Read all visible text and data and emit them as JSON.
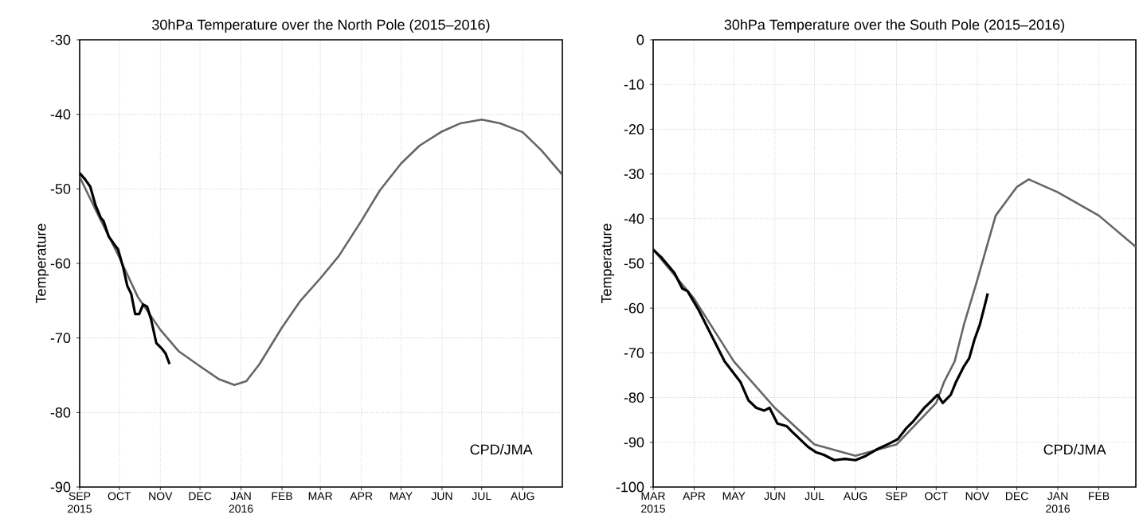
{
  "chart_data": [
    {
      "type": "line",
      "title": "30hPa Temperature over the North Pole (2015–2016)",
      "ylabel": "Temperature",
      "annotations": [
        "CPD/JMA"
      ],
      "grid": true,
      "marker": "none",
      "line_style": "solid",
      "xlim": [
        "2015-09-01",
        "2016-08-31"
      ],
      "ylim": [
        -90,
        -30
      ],
      "yticks": [
        -90,
        -80,
        -70,
        -60,
        -50,
        -40,
        -30
      ],
      "xticks": [
        {
          "value": "2015-09-01",
          "label": "SEP 2015"
        },
        {
          "value": "2015-10-01",
          "label": "OCT"
        },
        {
          "value": "2015-11-01",
          "label": "NOV"
        },
        {
          "value": "2015-12-01",
          "label": "DEC"
        },
        {
          "value": "2016-01-01",
          "label": "JAN 2016"
        },
        {
          "value": "2016-02-01",
          "label": "FEB"
        },
        {
          "value": "2016-03-01",
          "label": "MAR"
        },
        {
          "value": "2016-04-01",
          "label": "APR"
        },
        {
          "value": "2016-05-01",
          "label": "MAY"
        },
        {
          "value": "2016-06-01",
          "label": "JUN"
        },
        {
          "value": "2016-07-01",
          "label": "JUL"
        },
        {
          "value": "2016-08-01",
          "label": "AUG"
        }
      ],
      "series": [
        {
          "color": "#666666",
          "x": [
            "2015-09-01",
            "2015-09-15",
            "2015-10-01",
            "2015-10-15",
            "2015-11-01",
            "2015-11-15",
            "2015-12-01",
            "2015-12-15",
            "2015-12-27",
            "2016-01-05",
            "2016-01-15",
            "2016-02-01",
            "2016-02-15",
            "2016-03-01",
            "2016-03-15",
            "2016-04-01",
            "2016-04-15",
            "2016-05-01",
            "2016-05-15",
            "2016-06-01",
            "2016-06-15",
            "2016-07-01",
            "2016-07-15",
            "2016-08-01",
            "2016-08-15",
            "2016-08-31"
          ],
          "values": [
            -48.4,
            -53.5,
            -59.2,
            -64.5,
            -68.9,
            -71.8,
            -73.8,
            -75.5,
            -76.3,
            -75.8,
            -73.5,
            -68.6,
            -65.0,
            -62.0,
            -59.0,
            -54.3,
            -50.2,
            -46.6,
            -44.2,
            -42.3,
            -41.2,
            -40.7,
            -41.2,
            -42.4,
            -44.8,
            -48.1
          ]
        },
        {
          "color": "#000000",
          "x": [
            "2015-09-01",
            "2015-09-05",
            "2015-09-09",
            "2015-09-13",
            "2015-09-17",
            "2015-09-19",
            "2015-09-23",
            "2015-09-27",
            "2015-09-30",
            "2015-10-04",
            "2015-10-07",
            "2015-10-10",
            "2015-10-13",
            "2015-10-16",
            "2015-10-19",
            "2015-10-22",
            "2015-10-25",
            "2015-10-29",
            "2015-11-02",
            "2015-11-05",
            "2015-11-08"
          ],
          "values": [
            -47.9,
            -48.7,
            -49.7,
            -52.2,
            -53.9,
            -54.3,
            -56.4,
            -57.4,
            -58.1,
            -60.6,
            -63.0,
            -64.1,
            -66.8,
            -66.8,
            -65.5,
            -65.8,
            -67.5,
            -70.7,
            -71.4,
            -72.1,
            -73.5
          ]
        }
      ]
    },
    {
      "type": "line",
      "title": "30hPa Temperature over the South Pole (2015–2016)",
      "ylabel": "Temperature",
      "annotations": [
        "CPD/JMA"
      ],
      "grid": true,
      "marker": "none",
      "line_style": "solid",
      "xlim": [
        "2015-03-01",
        "2016-02-29"
      ],
      "ylim": [
        -100,
        0
      ],
      "yticks": [
        -100,
        -90,
        -80,
        -70,
        -60,
        -50,
        -40,
        -30,
        -20,
        -10,
        0
      ],
      "xticks": [
        {
          "value": "2015-03-01",
          "label": "MAR 2015"
        },
        {
          "value": "2015-04-01",
          "label": "APR"
        },
        {
          "value": "2015-05-01",
          "label": "MAY"
        },
        {
          "value": "2015-06-01",
          "label": "JUN"
        },
        {
          "value": "2015-07-01",
          "label": "JUL"
        },
        {
          "value": "2015-08-01",
          "label": "AUG"
        },
        {
          "value": "2015-09-01",
          "label": "SEP"
        },
        {
          "value": "2015-10-01",
          "label": "OCT"
        },
        {
          "value": "2015-11-01",
          "label": "NOV"
        },
        {
          "value": "2015-12-01",
          "label": "DEC"
        },
        {
          "value": "2016-01-01",
          "label": "JAN 2016"
        },
        {
          "value": "2016-02-01",
          "label": "FEB"
        }
      ],
      "series": [
        {
          "color": "#666666",
          "x": [
            "2015-03-01",
            "2015-04-01",
            "2015-05-01",
            "2015-06-01",
            "2015-07-01",
            "2015-08-01",
            "2015-09-01",
            "2015-10-01",
            "2015-10-07",
            "2015-10-15",
            "2015-10-22",
            "2015-11-01",
            "2015-11-15",
            "2015-12-01",
            "2015-12-10",
            "2016-01-01",
            "2016-02-01",
            "2016-02-29"
          ],
          "values": [
            -46.9,
            -57.9,
            -71.9,
            -82.3,
            -90.5,
            -93.0,
            -90.5,
            -81.2,
            -76.5,
            -71.9,
            -63.7,
            -53.8,
            -39.3,
            -32.9,
            -31.2,
            -34.1,
            -39.3,
            -46.3
          ]
        },
        {
          "color": "#000000",
          "x": [
            "2015-03-01",
            "2015-03-07",
            "2015-03-17",
            "2015-03-23",
            "2015-03-27",
            "2015-04-04",
            "2015-04-10",
            "2015-04-16",
            "2015-04-24",
            "2015-04-30",
            "2015-05-06",
            "2015-05-12",
            "2015-05-18",
            "2015-05-24",
            "2015-05-28",
            "2015-06-03",
            "2015-06-10",
            "2015-06-14",
            "2015-06-20",
            "2015-06-26",
            "2015-07-02",
            "2015-07-08",
            "2015-07-16",
            "2015-07-24",
            "2015-08-01",
            "2015-08-09",
            "2015-08-17",
            "2015-08-25",
            "2015-09-02",
            "2015-09-08",
            "2015-09-14",
            "2015-09-22",
            "2015-09-28",
            "2015-10-02",
            "2015-10-06",
            "2015-10-12",
            "2015-10-16",
            "2015-10-22",
            "2015-10-26",
            "2015-10-30",
            "2015-11-03",
            "2015-11-07",
            "2015-11-09"
          ],
          "values": [
            -46.9,
            -48.6,
            -52.1,
            -55.6,
            -56.2,
            -60.2,
            -63.7,
            -67.2,
            -71.9,
            -74.2,
            -76.5,
            -80.6,
            -82.3,
            -82.9,
            -82.3,
            -85.8,
            -86.4,
            -87.6,
            -89.3,
            -91.0,
            -92.2,
            -92.8,
            -94.0,
            -93.7,
            -94.0,
            -93.0,
            -91.6,
            -90.5,
            -89.3,
            -87.0,
            -85.2,
            -82.3,
            -80.6,
            -79.4,
            -81.2,
            -79.4,
            -76.5,
            -73.0,
            -71.2,
            -67.0,
            -63.7,
            -59.1,
            -56.7
          ]
        }
      ]
    }
  ]
}
